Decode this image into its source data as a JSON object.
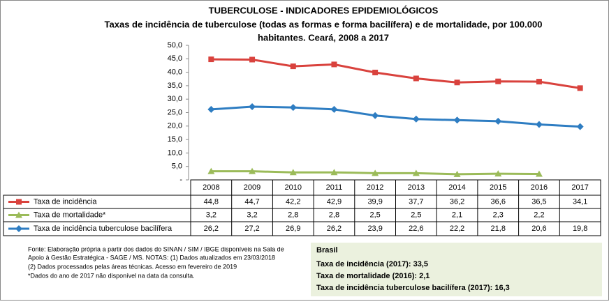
{
  "chart_data": {
    "type": "line",
    "title": "TUBERCULOSE - INDICADORES EPIDEMIOLÓGICOS",
    "subtitle": [
      "Taxas de incidência de tuberculose (todas as formas e forma bacilífera) e de mortalidade,  por 100.000",
      "habitantes. Ceará, 2008 a 2017"
    ],
    "categories": [
      "2008",
      "2009",
      "2010",
      "2011",
      "2012",
      "2013",
      "2014",
      "2015",
      "2016",
      "2017"
    ],
    "series": [
      {
        "name": "Taxa de incidência",
        "color": "#d9423d",
        "marker": "square",
        "values": [
          44.8,
          44.7,
          42.2,
          42.9,
          39.9,
          37.7,
          36.2,
          36.6,
          36.5,
          34.1
        ],
        "value_labels": [
          "44,8",
          "44,7",
          "42,2",
          "42,9",
          "39,9",
          "37,7",
          "36,2",
          "36,6",
          "36,5",
          "34,1"
        ]
      },
      {
        "name": "Taxa de mortalidade*",
        "color": "#9bbb59",
        "marker": "triangle",
        "values": [
          3.2,
          3.2,
          2.8,
          2.8,
          2.5,
          2.5,
          2.1,
          2.3,
          2.2,
          null
        ],
        "value_labels": [
          "3,2",
          "3,2",
          "2,8",
          "2,8",
          "2,5",
          "2,5",
          "2,1",
          "2,3",
          "2,2",
          null
        ]
      },
      {
        "name": "Taxa de incidência tuberculose bacilífera",
        "color": "#2e7dc2",
        "marker": "diamond",
        "values": [
          26.2,
          27.2,
          26.9,
          26.2,
          23.9,
          22.6,
          22.2,
          21.8,
          20.6,
          19.8
        ],
        "value_labels": [
          "26,2",
          "27,2",
          "26,9",
          "26,2",
          "23,9",
          "22,6",
          "22,2",
          "21,8",
          "20,6",
          "19,8"
        ]
      }
    ],
    "ylim": [
      0,
      50
    ],
    "yticks": [
      {
        "value": 0,
        "label": "-"
      },
      {
        "value": 5,
        "label": "5,0"
      },
      {
        "value": 10,
        "label": "10,0"
      },
      {
        "value": 15,
        "label": "15,0"
      },
      {
        "value": 20,
        "label": "20,0"
      },
      {
        "value": 25,
        "label": "25,0"
      },
      {
        "value": 30,
        "label": "30,0"
      },
      {
        "value": 35,
        "label": "35,0"
      },
      {
        "value": 40,
        "label": "40,0"
      },
      {
        "value": 45,
        "label": "45,0"
      },
      {
        "value": 50,
        "label": "50,0"
      }
    ],
    "grid": false,
    "notes": [
      "Fonte: Elaboração própria a partir dos dados do SINAN / SIM / IBGE disponíveis na Sala de",
      "Apoio à Gestão Estratégica - SAGE / MS. NOTAS: (1) Dados atualizados em 23/03/2018",
      "(2) Dados processados pelas áreas técnicas. Acesso em fevereiro de 2019",
      "*Dados do ano de 2017 não disponível na data da consulta."
    ],
    "summary": {
      "title": "Brasil",
      "lines": [
        "Taxa de incidência  (2017): 33,5",
        "Taxa de mortalidade (2016): 2,1",
        "Taxa de incidência  tuberculose bacilífera  (2017): 16,3"
      ]
    }
  }
}
